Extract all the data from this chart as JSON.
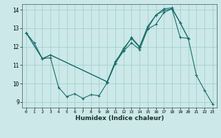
{
  "xlabel": "Humidex (Indice chaleur)",
  "bg_color": "#cce8e8",
  "grid_color": "#99cccc",
  "line_color": "#1a6b6b",
  "xlim": [
    -0.5,
    23.5
  ],
  "ylim": [
    8.7,
    14.3
  ],
  "yticks": [
    9,
    10,
    11,
    12,
    13,
    14
  ],
  "xticks": [
    0,
    1,
    2,
    3,
    4,
    5,
    6,
    7,
    8,
    9,
    10,
    11,
    12,
    13,
    14,
    15,
    16,
    17,
    18,
    19,
    20,
    21,
    22,
    23
  ],
  "line1_x": [
    0,
    1,
    2,
    3,
    4,
    5,
    6,
    7,
    8,
    9,
    10,
    11,
    12,
    13,
    14,
    15,
    16,
    17,
    18,
    19,
    20,
    21,
    22,
    23
  ],
  "line1_y": [
    12.75,
    12.2,
    11.35,
    11.4,
    9.8,
    9.3,
    9.45,
    9.2,
    9.4,
    9.35,
    10.05,
    11.1,
    11.9,
    12.45,
    11.95,
    13.0,
    13.7,
    13.95,
    14.05,
    12.5,
    12.45,
    10.45,
    9.65,
    8.9
  ],
  "line2_x": [
    0,
    2,
    3,
    10,
    11,
    12,
    13,
    14,
    15,
    16,
    17,
    18,
    19,
    20
  ],
  "line2_y": [
    12.75,
    11.35,
    11.55,
    10.1,
    11.2,
    11.8,
    12.5,
    12.0,
    13.1,
    13.7,
    14.05,
    14.1,
    13.3,
    12.45
  ],
  "line3_x": [
    0,
    2,
    3,
    10,
    11,
    12,
    13,
    14,
    15,
    16,
    17,
    18,
    19,
    20
  ],
  "line3_y": [
    12.75,
    11.35,
    11.55,
    10.1,
    11.1,
    11.75,
    12.2,
    11.85,
    12.95,
    13.2,
    13.85,
    14.05,
    13.3,
    12.45
  ]
}
